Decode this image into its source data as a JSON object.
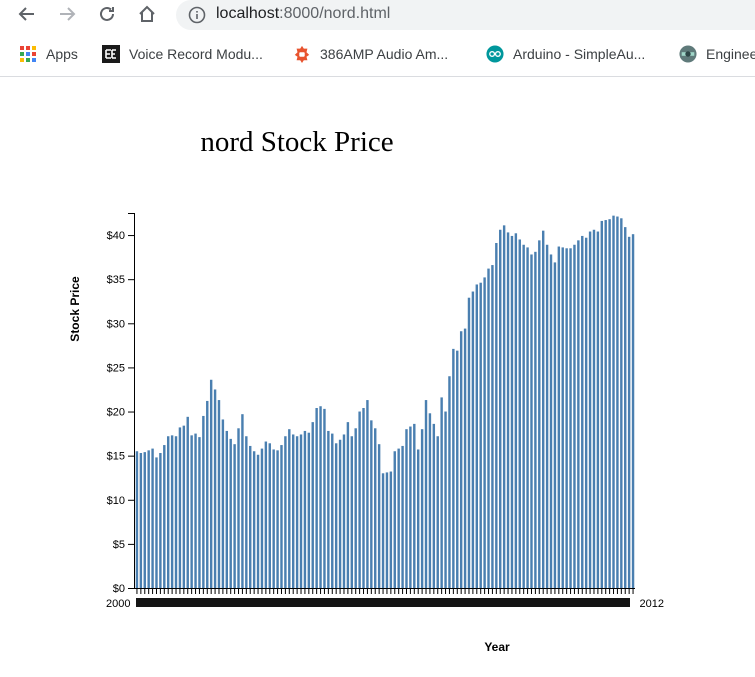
{
  "browser": {
    "url_host": "localhost",
    "url_path": ":8000/nord.html",
    "bookmarks": [
      {
        "label": "Apps",
        "icon": "apps-grid-icon"
      },
      {
        "label": "Voice Record Modu...",
        "icon": "voice-record-icon"
      },
      {
        "label": "386AMP Audio Am...",
        "icon": "amp-icon"
      },
      {
        "label": "Arduino - SimpleAu...",
        "icon": "arduino-icon"
      },
      {
        "label": "Engineer",
        "icon": "engineer-icon"
      }
    ]
  },
  "colors": {
    "bar": "#4a7fb0",
    "accent": "#e8542f",
    "arduino": "#00979c"
  },
  "chart_data": {
    "type": "bar",
    "title": "nord Stock Price",
    "xlabel": "Year",
    "ylabel": "Stock Price",
    "ylim": [
      0,
      42.5
    ],
    "yticks": [
      0,
      5,
      10,
      15,
      20,
      25,
      30,
      35,
      40
    ],
    "ytick_labels": [
      "$0",
      "$5",
      "$10",
      "$15",
      "$20",
      "$25",
      "$30",
      "$35",
      "$40"
    ],
    "xtick_labels_left": "2000",
    "xtick_labels_right": "2012",
    "values": [
      15.5,
      15.3,
      15.4,
      15.6,
      15.8,
      14.8,
      15.3,
      16.2,
      17.2,
      17.3,
      17.2,
      18.2,
      18.4,
      19.4,
      17.3,
      17.5,
      17.1,
      19.5,
      21.2,
      23.6,
      22.5,
      21.3,
      19.1,
      17.8,
      16.9,
      16.3,
      18.1,
      19.7,
      17.2,
      16.1,
      15.5,
      15.1,
      15.8,
      16.6,
      16.4,
      15.7,
      15.6,
      16.2,
      17.2,
      18.0,
      17.4,
      17.2,
      17.4,
      17.8,
      17.6,
      18.8,
      20.4,
      20.6,
      20.3,
      17.8,
      17.5,
      16.4,
      16.8,
      17.4,
      18.8,
      17.2,
      18.1,
      20.0,
      20.4,
      21.3,
      19.0,
      18.1,
      16.3,
      13.0,
      13.1,
      13.2,
      15.5,
      15.8,
      16.1,
      18.0,
      18.3,
      18.6,
      15.7,
      18.0,
      21.3,
      19.8,
      18.6,
      17.2,
      21.6,
      20.0,
      24.0,
      27.1,
      26.9,
      29.1,
      29.4,
      32.9,
      33.6,
      34.4,
      34.6,
      35.2,
      36.2,
      36.6,
      39.1,
      40.6,
      41.1,
      40.3,
      39.9,
      40.2,
      39.5,
      38.9,
      38.6,
      37.8,
      38.1,
      39.4,
      40.5,
      38.9,
      37.8,
      36.9,
      38.7,
      38.6,
      38.5,
      38.5,
      38.9,
      39.4,
      39.9,
      39.7,
      40.4,
      40.6,
      40.4,
      41.6,
      41.7,
      41.8,
      42.2,
      42.1,
      41.9,
      40.9,
      39.8,
      40.1
    ]
  }
}
